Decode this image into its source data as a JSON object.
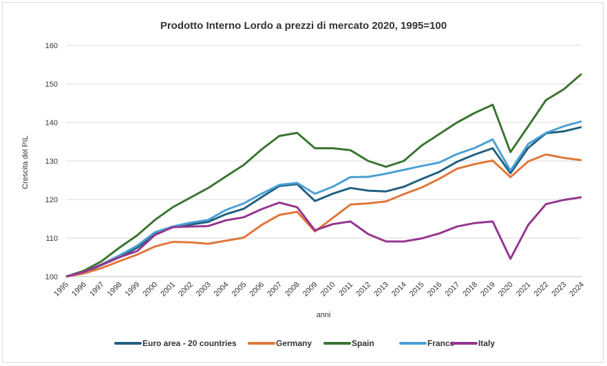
{
  "chart_data": {
    "type": "line",
    "title": "Prodotto Interno Lordo a prezzi di mercato 2020, 1995=100",
    "xlabel": "anni",
    "ylabel": "Crescita del PIL",
    "ylim": [
      100,
      160
    ],
    "yticks": [
      100,
      110,
      120,
      130,
      140,
      150,
      160
    ],
    "grid": "horizontal",
    "legend_position": "bottom",
    "x": [
      1995,
      1996,
      1997,
      1998,
      1999,
      2000,
      2001,
      2002,
      2003,
      2004,
      2005,
      2006,
      2007,
      2008,
      2009,
      2010,
      2011,
      2012,
      2013,
      2014,
      2015,
      2016,
      2017,
      2018,
      2019,
      2020,
      2021,
      2022,
      2023,
      2024
    ],
    "series": [
      {
        "name": "Euro area - 20 countries",
        "color": "#215f7f",
        "values": [
          100,
          101,
          103,
          105,
          107.5,
          111,
          112.8,
          113.5,
          114.2,
          116.2,
          117.6,
          120.6,
          123.5,
          124,
          119.6,
          121.5,
          123,
          122.3,
          122.1,
          123.3,
          125.3,
          127.2,
          129.8,
          131.7,
          133.3,
          126.8,
          133.4,
          137.2,
          137.7,
          138.8
        ]
      },
      {
        "name": "Germany",
        "color": "#e0763a",
        "values": [
          100,
          100.8,
          102.2,
          104,
          105.7,
          107.8,
          109,
          108.9,
          108.5,
          109.3,
          110.1,
          113.4,
          116,
          116.8,
          111.7,
          115.2,
          118.7,
          119,
          119.5,
          121.4,
          123.1,
          125.4,
          128,
          129.2,
          130.1,
          125.8,
          129.9,
          131.7,
          130.8,
          130.2
        ]
      },
      {
        "name": "Spain",
        "color": "#3a7430",
        "values": [
          100,
          101.5,
          104,
          107.5,
          110.7,
          114.7,
          118,
          120.5,
          123,
          126,
          129,
          133,
          136.5,
          137.3,
          133.3,
          133.3,
          132.8,
          130,
          128.5,
          130,
          134,
          137,
          140,
          142.5,
          144.6,
          132.3,
          139,
          145.8,
          148.6,
          152.6
        ]
      },
      {
        "name": "France",
        "color": "#4aa0d5",
        "values": [
          100,
          101.2,
          103.2,
          105.5,
          108,
          111.5,
          113,
          114,
          114.7,
          117.3,
          119,
          121.5,
          123.8,
          124.3,
          121.5,
          123.3,
          125.8,
          125.9,
          126.7,
          127.7,
          128.7,
          129.6,
          131.8,
          133.4,
          135.6,
          127.5,
          134.4,
          137.3,
          139,
          140.3
        ]
      },
      {
        "name": "Italy",
        "color": "#94358f",
        "values": [
          100,
          101.2,
          103.1,
          105,
          106.6,
          110.8,
          112.8,
          113,
          113.1,
          114.6,
          115.4,
          117.5,
          119.2,
          118,
          112,
          113.6,
          114.3,
          111,
          109.1,
          109.1,
          109.9,
          111.2,
          113,
          113.9,
          114.3,
          104.6,
          113.4,
          118.8,
          119.9,
          120.6
        ]
      }
    ]
  }
}
